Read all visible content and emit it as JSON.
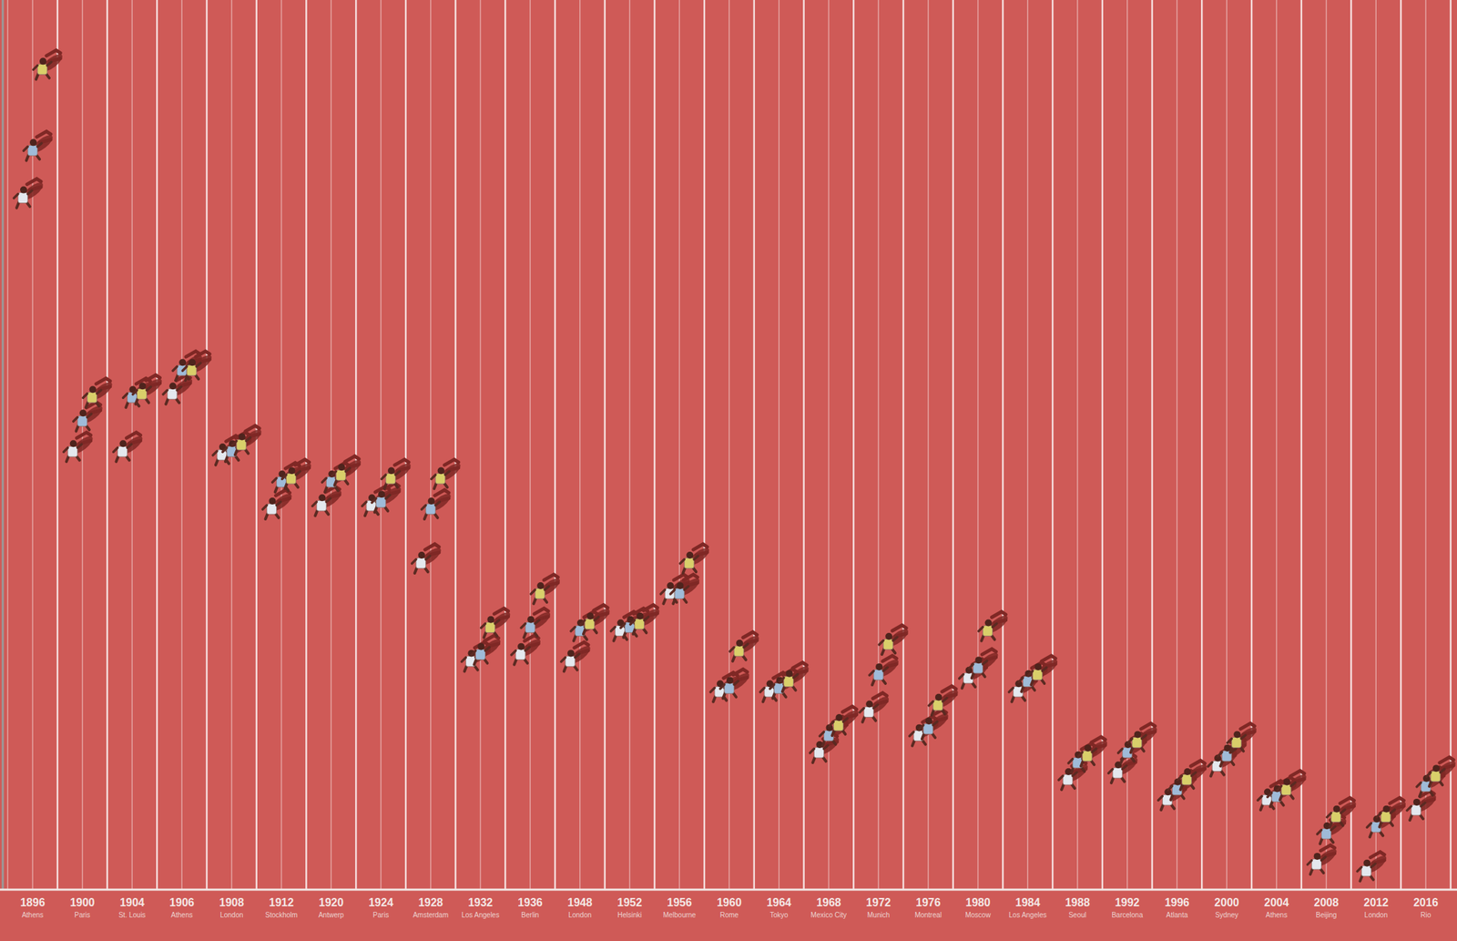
{
  "chart_data": {
    "type": "scatter",
    "categories": [
      "1896",
      "1900",
      "1904",
      "1906",
      "1908",
      "1912",
      "1920",
      "1924",
      "1928",
      "1932",
      "1936",
      "1948",
      "1952",
      "1956",
      "1960",
      "1964",
      "1968",
      "1972",
      "1976",
      "1980",
      "1984",
      "1988",
      "1992",
      "1996",
      "2000",
      "2004",
      "2008",
      "2012",
      "2016"
    ],
    "category_cities": [
      "Athens",
      "Paris",
      "St. Louis",
      "Athens",
      "London",
      "Stockholm",
      "Antwerp",
      "Paris",
      "Amsterdam",
      "Los Angeles",
      "Berlin",
      "London",
      "Helsinki",
      "Melbourne",
      "Rome",
      "Tokyo",
      "Mexico City",
      "Munich",
      "Montreal",
      "Moscow",
      "Los Angeles",
      "Seoul",
      "Barcelona",
      "Atlanta",
      "Sydney",
      "Athens",
      "Beijing",
      "London",
      "Rio"
    ],
    "ylim": [
      9.57,
      12.2
    ],
    "tick_labels": "x",
    "marker": "runner",
    "series": [
      {
        "color": "#e4e8ee",
        "values": [
          11.61,
          10.86,
          10.86,
          11.03,
          10.85,
          10.69,
          10.7,
          10.7,
          10.53,
          10.24,
          10.26,
          10.24,
          10.33,
          10.44,
          10.15,
          10.15,
          9.97,
          10.09,
          10.02,
          10.19,
          10.15,
          9.89,
          9.91,
          9.83,
          9.93,
          9.83,
          9.64,
          9.62,
          9.8
        ]
      },
      {
        "color": "#9fbbd8",
        "values": [
          11.75,
          10.95,
          11.02,
          11.1,
          10.86,
          10.77,
          10.77,
          10.71,
          10.69,
          10.26,
          10.34,
          10.33,
          10.34,
          10.44,
          10.16,
          10.16,
          10.02,
          10.2,
          10.04,
          10.22,
          10.18,
          9.94,
          9.97,
          9.86,
          9.96,
          9.84,
          9.73,
          9.75,
          9.87
        ]
      },
      {
        "color": "#d9cf6a",
        "values": [
          11.99,
          11.02,
          11.03,
          11.1,
          10.88,
          10.78,
          10.79,
          10.78,
          10.78,
          10.34,
          10.44,
          10.35,
          10.35,
          10.53,
          10.27,
          10.18,
          10.05,
          10.29,
          10.11,
          10.33,
          10.2,
          9.96,
          10.0,
          9.89,
          10.0,
          9.86,
          9.78,
          9.78,
          9.9
        ]
      }
    ]
  }
}
